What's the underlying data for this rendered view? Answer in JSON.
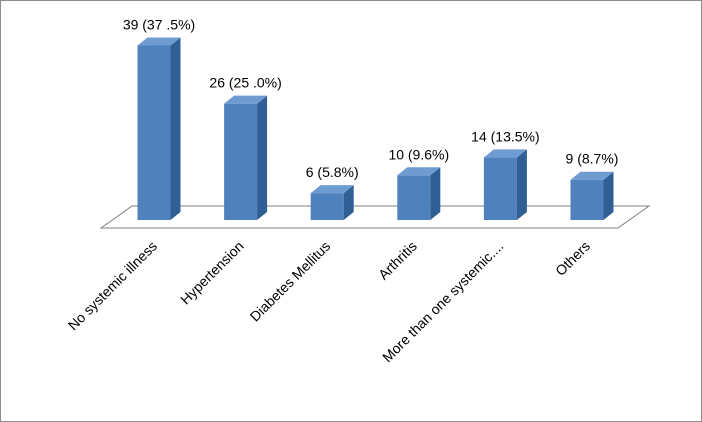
{
  "chart_data": {
    "type": "bar",
    "style": "3d-column",
    "categories": [
      "No systemic illness",
      "Hypertension",
      "Diabetes Mellitus",
      "Arthritis",
      "More than one systemic....",
      "Others"
    ],
    "values": [
      39,
      26,
      6,
      10,
      14,
      9
    ],
    "data_labels": [
      "39 (37 .5%)",
      "26 (25 .0%)",
      "6 (5.8%)",
      "10 (9.6%)",
      "14 (13.5%)",
      "9 (8.7%)"
    ],
    "title": "",
    "xlabel": "",
    "ylabel": "",
    "ylim": [
      0,
      40
    ],
    "grid": false,
    "legend": "none",
    "colors": {
      "bar_front": "#4f81bd",
      "bar_side": "#2f5f94",
      "bar_top": "#6f9bd3",
      "floor_stroke": "#7f7f7f"
    }
  }
}
